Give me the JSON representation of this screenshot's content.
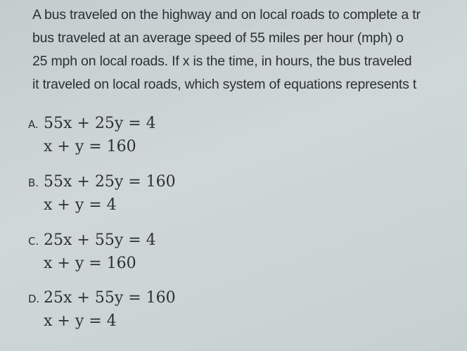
{
  "question": {
    "lines": [
      "A bus traveled on the highway and on local roads to complete a tr",
      "bus traveled at an average speed of 55 miles per hour (mph) o",
      "25 mph on local roads. If x is the time, in hours, the bus traveled",
      "it traveled on local roads, which system of equations represents t"
    ]
  },
  "options": [
    {
      "label": "A.",
      "equations": [
        "55x + 25y = 4",
        "x + y = 160"
      ]
    },
    {
      "label": "B.",
      "equations": [
        "55x + 25y = 160",
        "x + y = 4"
      ]
    },
    {
      "label": "C.",
      "equations": [
        "25x + 55y = 4",
        "x + y = 160"
      ]
    },
    {
      "label": "D.",
      "equations": [
        "25x + 55y = 160",
        "x + y = 4"
      ]
    }
  ]
}
